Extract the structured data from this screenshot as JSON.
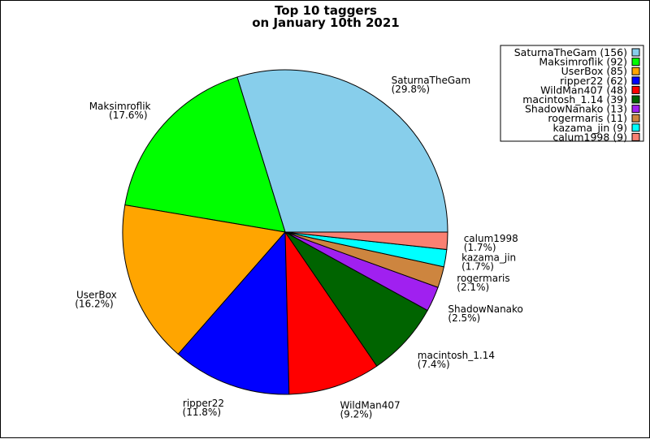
{
  "chart_data": {
    "type": "pie",
    "title_line1": "Top 10 taggers",
    "title_line2": "on January 10th 2021",
    "slices": [
      {
        "label": "SaturnaTheGam",
        "value": 156,
        "pct": "(29.8%)",
        "legend": "SaturnaTheGam (156)",
        "color": "#87CEEB"
      },
      {
        "label": "Maksimroflik",
        "value": 92,
        "pct": "(17.6%)",
        "legend": "Maksimroflik (92)",
        "color": "#00FF00"
      },
      {
        "label": "UserBox",
        "value": 85,
        "pct": "(16.2%)",
        "legend": "UserBox (85)",
        "color": "#FFA500"
      },
      {
        "label": "ripper22",
        "value": 62,
        "pct": "(11.8%)",
        "legend": "ripper22 (62)",
        "color": "#0000FF"
      },
      {
        "label": "WildMan407",
        "value": 48,
        "pct": "(9.2%)",
        "legend": "WildMan407 (48)",
        "color": "#FF0000"
      },
      {
        "label": "macintosh_1.14",
        "value": 39,
        "pct": "(7.4%)",
        "legend": "macintosh_1.14 (39)",
        "color": "#006400"
      },
      {
        "label": "ShadowNanako",
        "value": 13,
        "pct": "(2.5%)",
        "legend": "ShadowNanako (13)",
        "color": "#A020F0"
      },
      {
        "label": "rogermaris",
        "value": 11,
        "pct": "(2.1%)",
        "legend": "rogermaris (11)",
        "color": "#CD853F"
      },
      {
        "label": "kazama_jin",
        "value": 9,
        "pct": "(1.7%)",
        "legend": "kazama_jin (9)",
        "color": "#00FFFF"
      },
      {
        "label": "calum1998",
        "value": 9,
        "pct": "(1.7%)",
        "legend": "calum1998 (9)",
        "color": "#FA8072"
      }
    ],
    "legend_position": "top-right",
    "start_angle": "0 degrees (3 o'clock)",
    "direction": "counterclockwise"
  }
}
